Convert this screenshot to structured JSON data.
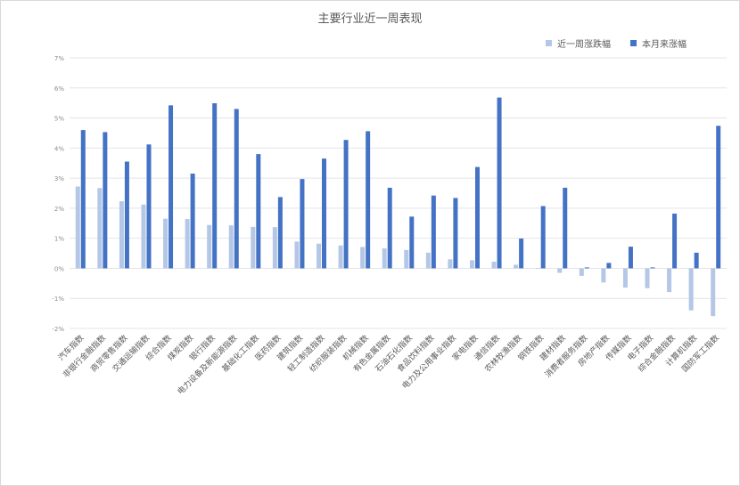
{
  "chart_data": {
    "type": "bar",
    "title": "主要行业近一周表现",
    "xlabel": "",
    "ylabel": "",
    "ylim": [
      -2,
      7
    ],
    "y_ticks": [
      "-2%",
      "-1%",
      "0%",
      "1%",
      "2%",
      "3%",
      "4%",
      "5%",
      "6%",
      "7%"
    ],
    "y_tick_values": [
      -2,
      -1,
      0,
      1,
      2,
      3,
      4,
      5,
      6,
      7
    ],
    "grid": true,
    "legend_position": "top-right",
    "categories": [
      "汽车指数",
      "非银行金融指数",
      "商贸零售指数",
      "交通运输指数",
      "综合指数",
      "煤炭指数",
      "银行指数",
      "电力设备及新能源指数",
      "基础化工指数",
      "医药指数",
      "建筑指数",
      "轻工制造指数",
      "纺织服装指数",
      "机械指数",
      "有色金属指数",
      "石油石化指数",
      "食品饮料指数",
      "电力及公用事业指数",
      "家电指数",
      "通信指数",
      "农林牧渔指数",
      "钢铁指数",
      "建材指数",
      "消费者服务指数",
      "房地产指数",
      "传媒指数",
      "电子指数",
      "综合金融指数",
      "计算机指数",
      "国防军工指数"
    ],
    "series": [
      {
        "name": "近一周涨跌幅",
        "color": "#b4c7e7",
        "values": [
          2.72,
          2.67,
          2.23,
          2.12,
          1.65,
          1.64,
          1.44,
          1.43,
          1.38,
          1.37,
          0.89,
          0.82,
          0.76,
          0.71,
          0.66,
          0.61,
          0.52,
          0.3,
          0.27,
          0.22,
          0.12,
          -0.02,
          -0.15,
          -0.25,
          -0.47,
          -0.64,
          -0.66,
          -0.79,
          -1.4,
          -1.59
        ]
      },
      {
        "name": "本月来涨幅",
        "color": "#4472c4",
        "values": [
          4.6,
          4.53,
          3.55,
          4.12,
          5.42,
          3.15,
          5.49,
          5.3,
          3.8,
          2.37,
          2.97,
          3.65,
          4.27,
          4.56,
          2.68,
          1.72,
          2.42,
          2.34,
          3.37,
          5.68,
          0.99,
          2.07,
          2.68,
          0.03,
          0.18,
          0.72,
          0.03,
          1.82,
          0.52,
          4.74
        ]
      }
    ]
  }
}
